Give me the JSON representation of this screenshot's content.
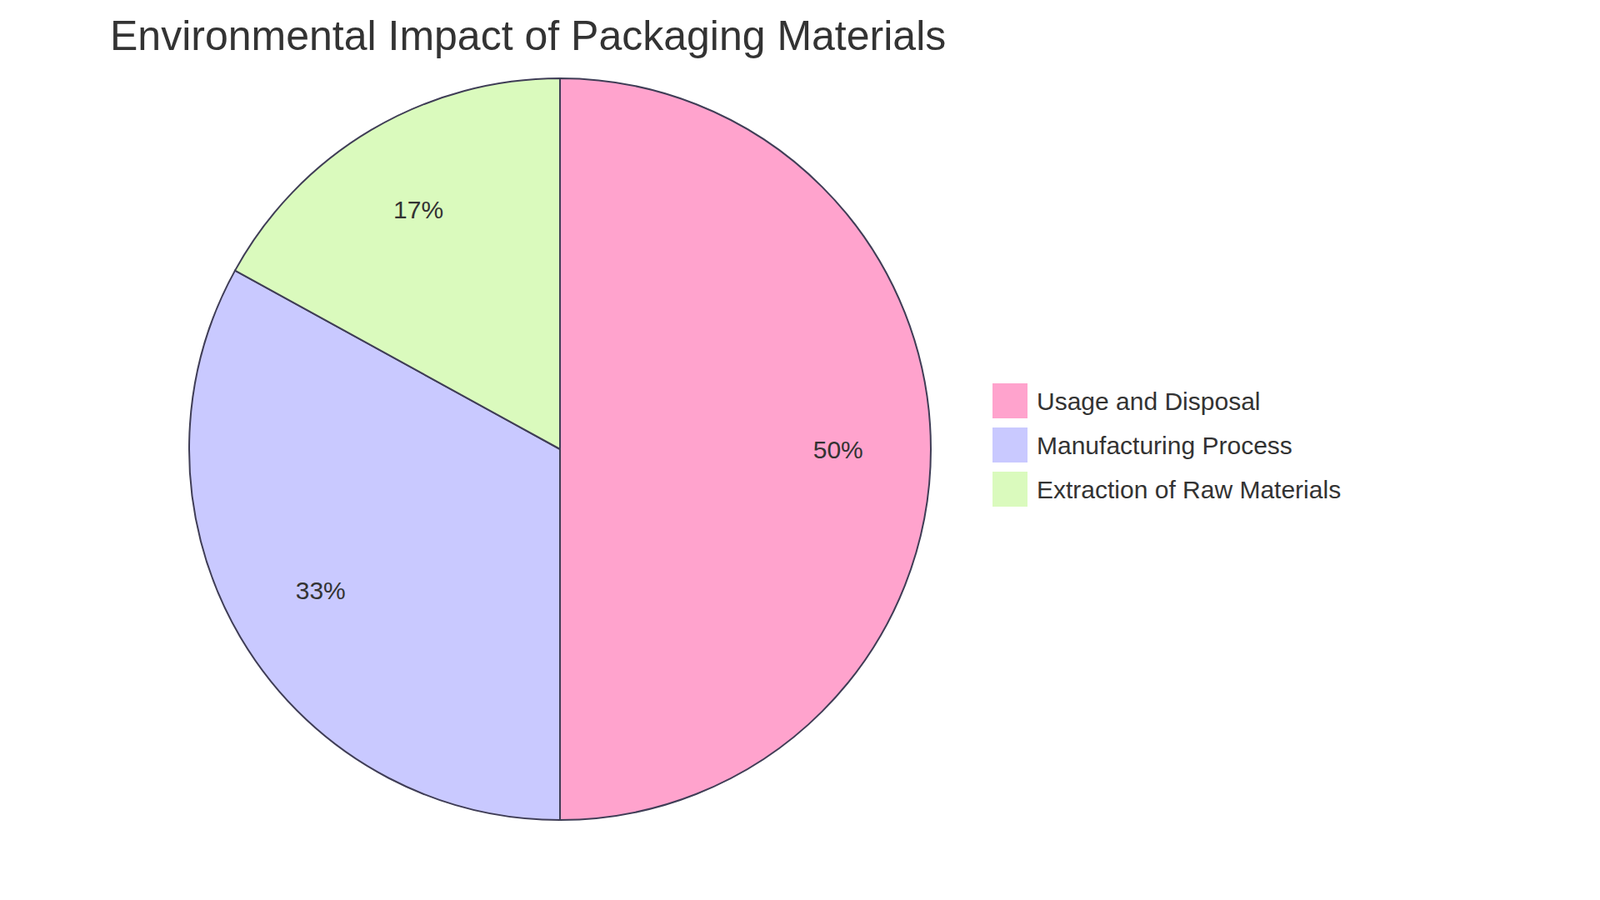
{
  "chart_data": {
    "type": "pie",
    "title": "Environmental Impact of Packaging Materials",
    "categories": [
      "Usage and Disposal",
      "Manufacturing Process",
      "Extraction of Raw Materials"
    ],
    "values": [
      50,
      33,
      17
    ],
    "value_labels": [
      "50%",
      "33%",
      "17%"
    ],
    "colors": [
      "#FFA3CD",
      "#C9C9FF",
      "#DAFABD"
    ],
    "data_labels": true,
    "legend": "right"
  }
}
